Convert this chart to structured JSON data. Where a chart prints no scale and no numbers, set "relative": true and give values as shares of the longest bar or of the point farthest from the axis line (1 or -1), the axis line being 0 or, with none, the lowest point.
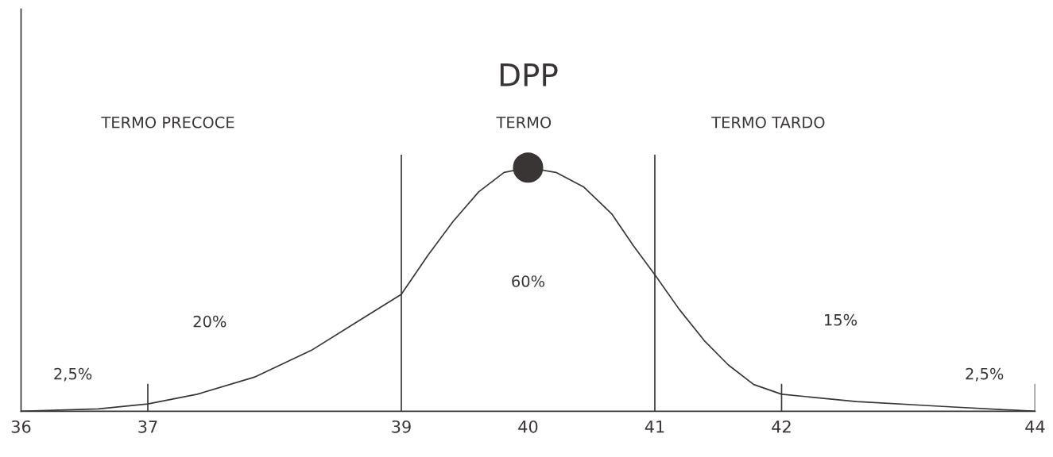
{
  "chart_data": {
    "type": "line",
    "title": "DPP",
    "relative": true,
    "x": [
      36,
      36.61,
      37,
      37.39,
      37.84,
      38.29,
      38.66,
      39,
      39.21,
      39.41,
      39.61,
      39.81,
      40,
      40.22,
      40.44,
      40.66,
      40.83,
      41,
      41.19,
      41.39,
      41.58,
      41.78,
      42,
      42.59,
      43.27,
      44
    ],
    "series": [
      {
        "color": "#3a3535",
        "values": [
          0,
          0.01,
          0.03,
          0.07,
          0.14,
          0.25,
          0.37,
          0.48,
          0.64,
          0.78,
          0.9,
          0.98,
          1,
          0.98,
          0.92,
          0.81,
          0.68,
          0.56,
          0.42,
          0.29,
          0.19,
          0.11,
          0.07,
          0.04,
          0.02,
          0
        ]
      },
      {
        "type": "scatter",
        "color": "#3a3535",
        "x": [
          40
        ],
        "values": [
          1
        ],
        "marker": "circle"
      }
    ],
    "xlim": [
      36,
      44
    ],
    "xticks": [
      36,
      37,
      39,
      40,
      41,
      42,
      44
    ],
    "tick_labels": "x",
    "grid": false,
    "legend": false,
    "marker": "none",
    "line_style": "solid",
    "ref_lines": [
      {
        "axis": "x",
        "value": 37,
        "color": "#3a3535"
      },
      {
        "axis": "x",
        "value": 39,
        "color": "#3a3535"
      },
      {
        "axis": "x",
        "value": 41,
        "color": "#3a3535"
      },
      {
        "axis": "x",
        "value": 42,
        "color": "#3a3535"
      },
      {
        "axis": "x",
        "value": 44,
        "color": "#3a3535"
      }
    ],
    "annotations": [
      "TERMO PRECOCE",
      "TERMO",
      "TERMO TARDO",
      "60%",
      "20%",
      "15%",
      "2,5%",
      "2,5%"
    ]
  }
}
